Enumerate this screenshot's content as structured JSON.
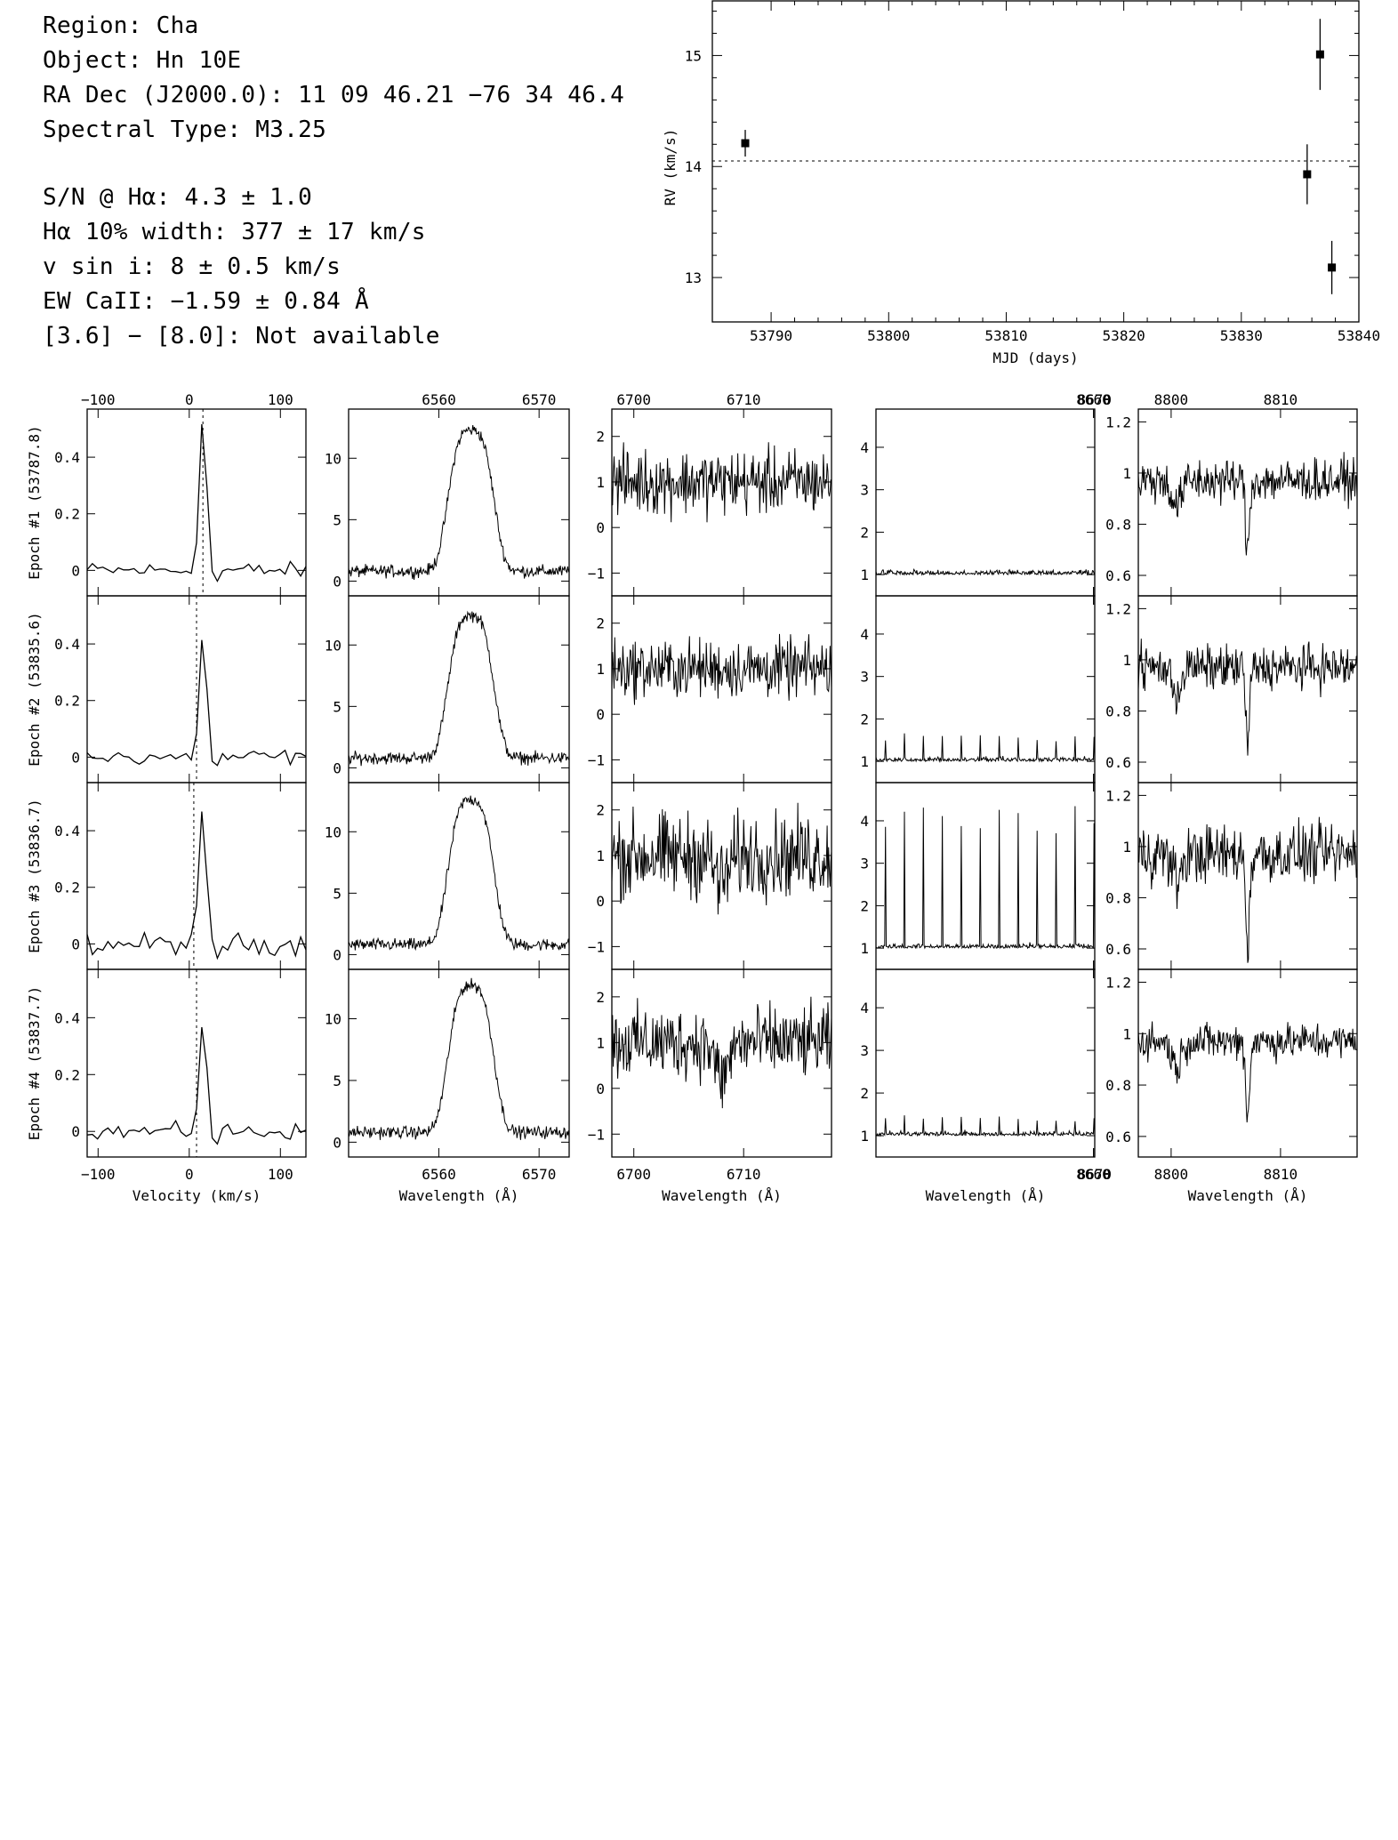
{
  "info": {
    "region": "Region: Cha",
    "object": "Object: Hn 10E",
    "radec": "RA Dec (J2000.0): 11 09 46.21 −76 34 46.4",
    "sptype": "Spectral Type: M3.25",
    "sn": "S/N @ Hα: 4.3 ± 1.0",
    "halpha_width": "Hα 10% width: 377 ± 17 km/s",
    "vsini": "v sin i: 8 ± 0.5 km/s",
    "ew_caii": "EW CaII: −1.59 ± 0.84 Å",
    "color": "[3.6] − [8.0]: Not available"
  },
  "chart_data": [
    {
      "id": "rv",
      "type": "scatter",
      "xlabel": "MJD (days)",
      "ylabel": "RV (km/s)",
      "xlim": [
        53785,
        53840
      ],
      "ylim": [
        12.6,
        15.5
      ],
      "xticks": [
        53790,
        53800,
        53810,
        53820,
        53830,
        53840
      ],
      "yticks": [
        13,
        14,
        15
      ],
      "reference_line": 14.05,
      "points": [
        {
          "x": 53787.8,
          "y": 14.21,
          "err": 0.12
        },
        {
          "x": 53835.6,
          "y": 13.93,
          "err": 0.27
        },
        {
          "x": 53836.7,
          "y": 15.01,
          "err": 0.32
        },
        {
          "x": 53837.7,
          "y": 13.09,
          "err": 0.24
        }
      ]
    },
    {
      "id": "spectra",
      "type": "line",
      "row_labels": [
        "Epoch #1 (53787.8)",
        "Epoch #2 (53835.6)",
        "Epoch #3 (53836.7)",
        "Epoch #4 (53837.7)"
      ],
      "columns": [
        {
          "id": "vel",
          "xlabel": "Velocity (km/s)",
          "xlim": [
            -112,
            128
          ],
          "xticks": [
            -100,
            0,
            100
          ],
          "ylim": [
            -0.09,
            0.57
          ],
          "yticks": [
            0,
            0.2,
            0.4
          ],
          "ytick_labels": [
            "0",
            "0.2",
            "0.4"
          ],
          "vline": [
            15,
            8,
            5,
            8
          ],
          "profile": {
            "base": 0.0,
            "peak": [
              0.52,
              0.42,
              0.44,
              0.38
            ],
            "center": 14,
            "width": 6,
            "noise": 0.02,
            "smooth": true
          }
        },
        {
          "id": "ha",
          "xlabel": "Wavelength (Å)",
          "xlim": [
            6551,
            6573
          ],
          "xticks": [
            6560,
            6570
          ],
          "ylim": [
            -1.2,
            14
          ],
          "yticks": [
            0,
            5,
            10
          ],
          "ytick_labels": [
            "0",
            "5",
            "10"
          ],
          "profile": {
            "base": 0.8,
            "peak": [
              11.5,
              11.6,
              11.8,
              11.9
            ],
            "center": 6563.2,
            "width": 2.5,
            "noise": 0.35
          }
        },
        {
          "id": "li",
          "xlabel": "Wavelength (Å)",
          "xlim": [
            6698,
            6718
          ],
          "xticks": [
            6700,
            6710
          ],
          "ylim": [
            -1.5,
            2.6
          ],
          "yticks": [
            -1,
            0,
            1,
            2
          ],
          "ytick_labels": [
            "−1",
            "0",
            "1",
            "2"
          ],
          "profile": {
            "base": 1.0,
            "noise": [
              0.5,
              0.45,
              0.65,
              0.55
            ],
            "dip": [
              0,
              0,
              0.6,
              0.8
            ],
            "dip_center": 6708
          }
        },
        {
          "id": "ca",
          "xlabel": "Wavelength (Å)",
          "xlim": [
            6652,
            8672
          ],
          "xticks": [
            8660,
            8670
          ],
          "ylim": [
            0.5,
            4.9
          ],
          "yticks": [
            1,
            2,
            3,
            4
          ],
          "ytick_labels": [
            "1",
            "2",
            "3",
            "4"
          ],
          "profile": {
            "base": 1.0,
            "peak": [
              0.9,
              1.1,
              0.8,
              0.85
            ],
            "center": 8662.1,
            "width": 0.35,
            "noise": 0.07,
            "spikes": [
              0,
              0.6,
              3.3,
              0.4
            ]
          }
        },
        {
          "id": "red",
          "xlabel": "Wavelength (Å)",
          "xlim": [
            8797,
            8817
          ],
          "xticks": [
            8800,
            8810
          ],
          "ylim": [
            0.52,
            1.25
          ],
          "yticks": [
            0.6,
            0.8,
            1,
            1.2
          ],
          "ytick_labels": [
            "0.6",
            "0.8",
            "1",
            "1.2"
          ],
          "profile": {
            "base": 0.97,
            "dip": [
              0.28,
              0.3,
              0.35,
              0.3
            ],
            "dip_center": 8807,
            "noise": [
              0.06,
              0.06,
              0.08,
              0.05
            ]
          }
        }
      ]
    }
  ]
}
